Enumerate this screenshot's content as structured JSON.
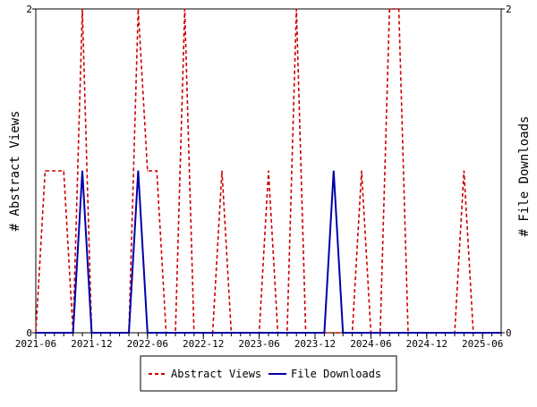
{
  "chart_data": {
    "type": "line",
    "x_tick_labels": [
      "2021-06",
      "2021-12",
      "2022-06",
      "2022-12",
      "2023-06",
      "2023-12",
      "2024-06",
      "2024-12",
      "2025-06"
    ],
    "y_left": {
      "label": "# Abstract Views",
      "ticks": [
        "0",
        "2"
      ],
      "ylim": [
        0,
        2
      ]
    },
    "y_right": {
      "label": "# File Downloads",
      "ticks": [
        "0",
        "2"
      ],
      "ylim": [
        0,
        2
      ]
    },
    "x": [
      "2021-06",
      "2021-07",
      "2021-08",
      "2021-09",
      "2021-10",
      "2021-11",
      "2021-12",
      "2022-01",
      "2022-02",
      "2022-03",
      "2022-04",
      "2022-05",
      "2022-06",
      "2022-07",
      "2022-08",
      "2022-09",
      "2022-10",
      "2022-11",
      "2022-12",
      "2023-01",
      "2023-02",
      "2023-03",
      "2023-04",
      "2023-05",
      "2023-06",
      "2023-07",
      "2023-08",
      "2023-09",
      "2023-10",
      "2023-11",
      "2023-12",
      "2024-01",
      "2024-02",
      "2024-03",
      "2024-04",
      "2024-05",
      "2024-06",
      "2024-07",
      "2024-08",
      "2024-09",
      "2024-10",
      "2024-11",
      "2024-12",
      "2025-01",
      "2025-02",
      "2025-03",
      "2025-04",
      "2025-05",
      "2025-06",
      "2025-07",
      "2025-08"
    ],
    "series": [
      {
        "name": "Abstract Views",
        "color": "#cc0000",
        "dash": "dashed",
        "axis": "left",
        "values": [
          0,
          1,
          1,
          1,
          0,
          2,
          0,
          0,
          0,
          0,
          0,
          2,
          1,
          1,
          0,
          0,
          2,
          0,
          0,
          0,
          1,
          0,
          0,
          0,
          0,
          1,
          0,
          0,
          2,
          0,
          0,
          0,
          0,
          0,
          0,
          1,
          0,
          0,
          2,
          2,
          0,
          0,
          0,
          0,
          0,
          0,
          1,
          0,
          0,
          0,
          0
        ]
      },
      {
        "name": "File Downloads",
        "color": "#0000aa",
        "dash": "solid",
        "axis": "right",
        "values": [
          0,
          0,
          0,
          0,
          0,
          1,
          0,
          0,
          0,
          0,
          0,
          1,
          0,
          0,
          0,
          0,
          0,
          0,
          0,
          0,
          0,
          0,
          0,
          0,
          0,
          0,
          0,
          0,
          0,
          0,
          0,
          0,
          1,
          0,
          0,
          0,
          0,
          0,
          0,
          0,
          0,
          0,
          0,
          0,
          0,
          0,
          0,
          0,
          0,
          0,
          0
        ]
      }
    ],
    "grid": false,
    "legend_position": "bottom"
  }
}
